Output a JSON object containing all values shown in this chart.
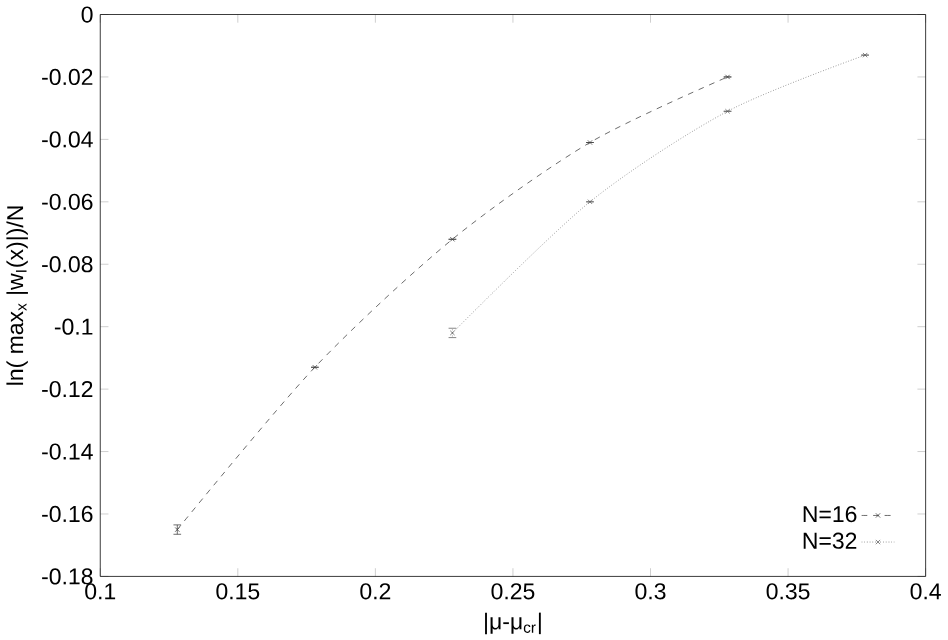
{
  "chart_data": {
    "type": "line",
    "xlabel": "|μ-μ$_{cr}$|",
    "ylabel": "ln( max$_{x}$ |w$_{I}$(x)|)/N",
    "xlim": [
      0.1,
      0.4
    ],
    "xticks": [
      0.1,
      0.15,
      0.2,
      0.25,
      0.3,
      0.35,
      0.4
    ],
    "ylim": [
      -0.18,
      0
    ],
    "yticks": [
      -0.18,
      -0.16,
      -0.14,
      -0.12,
      -0.1,
      -0.08,
      -0.06,
      -0.04,
      -0.02,
      0
    ],
    "legend": "bottom right",
    "grid": false,
    "series": [
      {
        "name": "N=16",
        "color": "#404040",
        "marker": "cross",
        "line_style": "dashed",
        "x": [
          0.128,
          0.178,
          0.228,
          0.278,
          0.328
        ],
        "values": [
          -0.165,
          -0.113,
          -0.072,
          -0.041,
          -0.02
        ],
        "errors": [
          0.0015,
          null,
          null,
          null,
          null
        ]
      },
      {
        "name": "N=32",
        "color": "#606060",
        "marker": "cross",
        "line_style": "dotted",
        "x": [
          0.228,
          0.278,
          0.328,
          0.378
        ],
        "values": [
          -0.102,
          -0.06,
          -0.031,
          -0.013
        ],
        "errors": [
          0.0015,
          null,
          null,
          null
        ]
      }
    ]
  }
}
